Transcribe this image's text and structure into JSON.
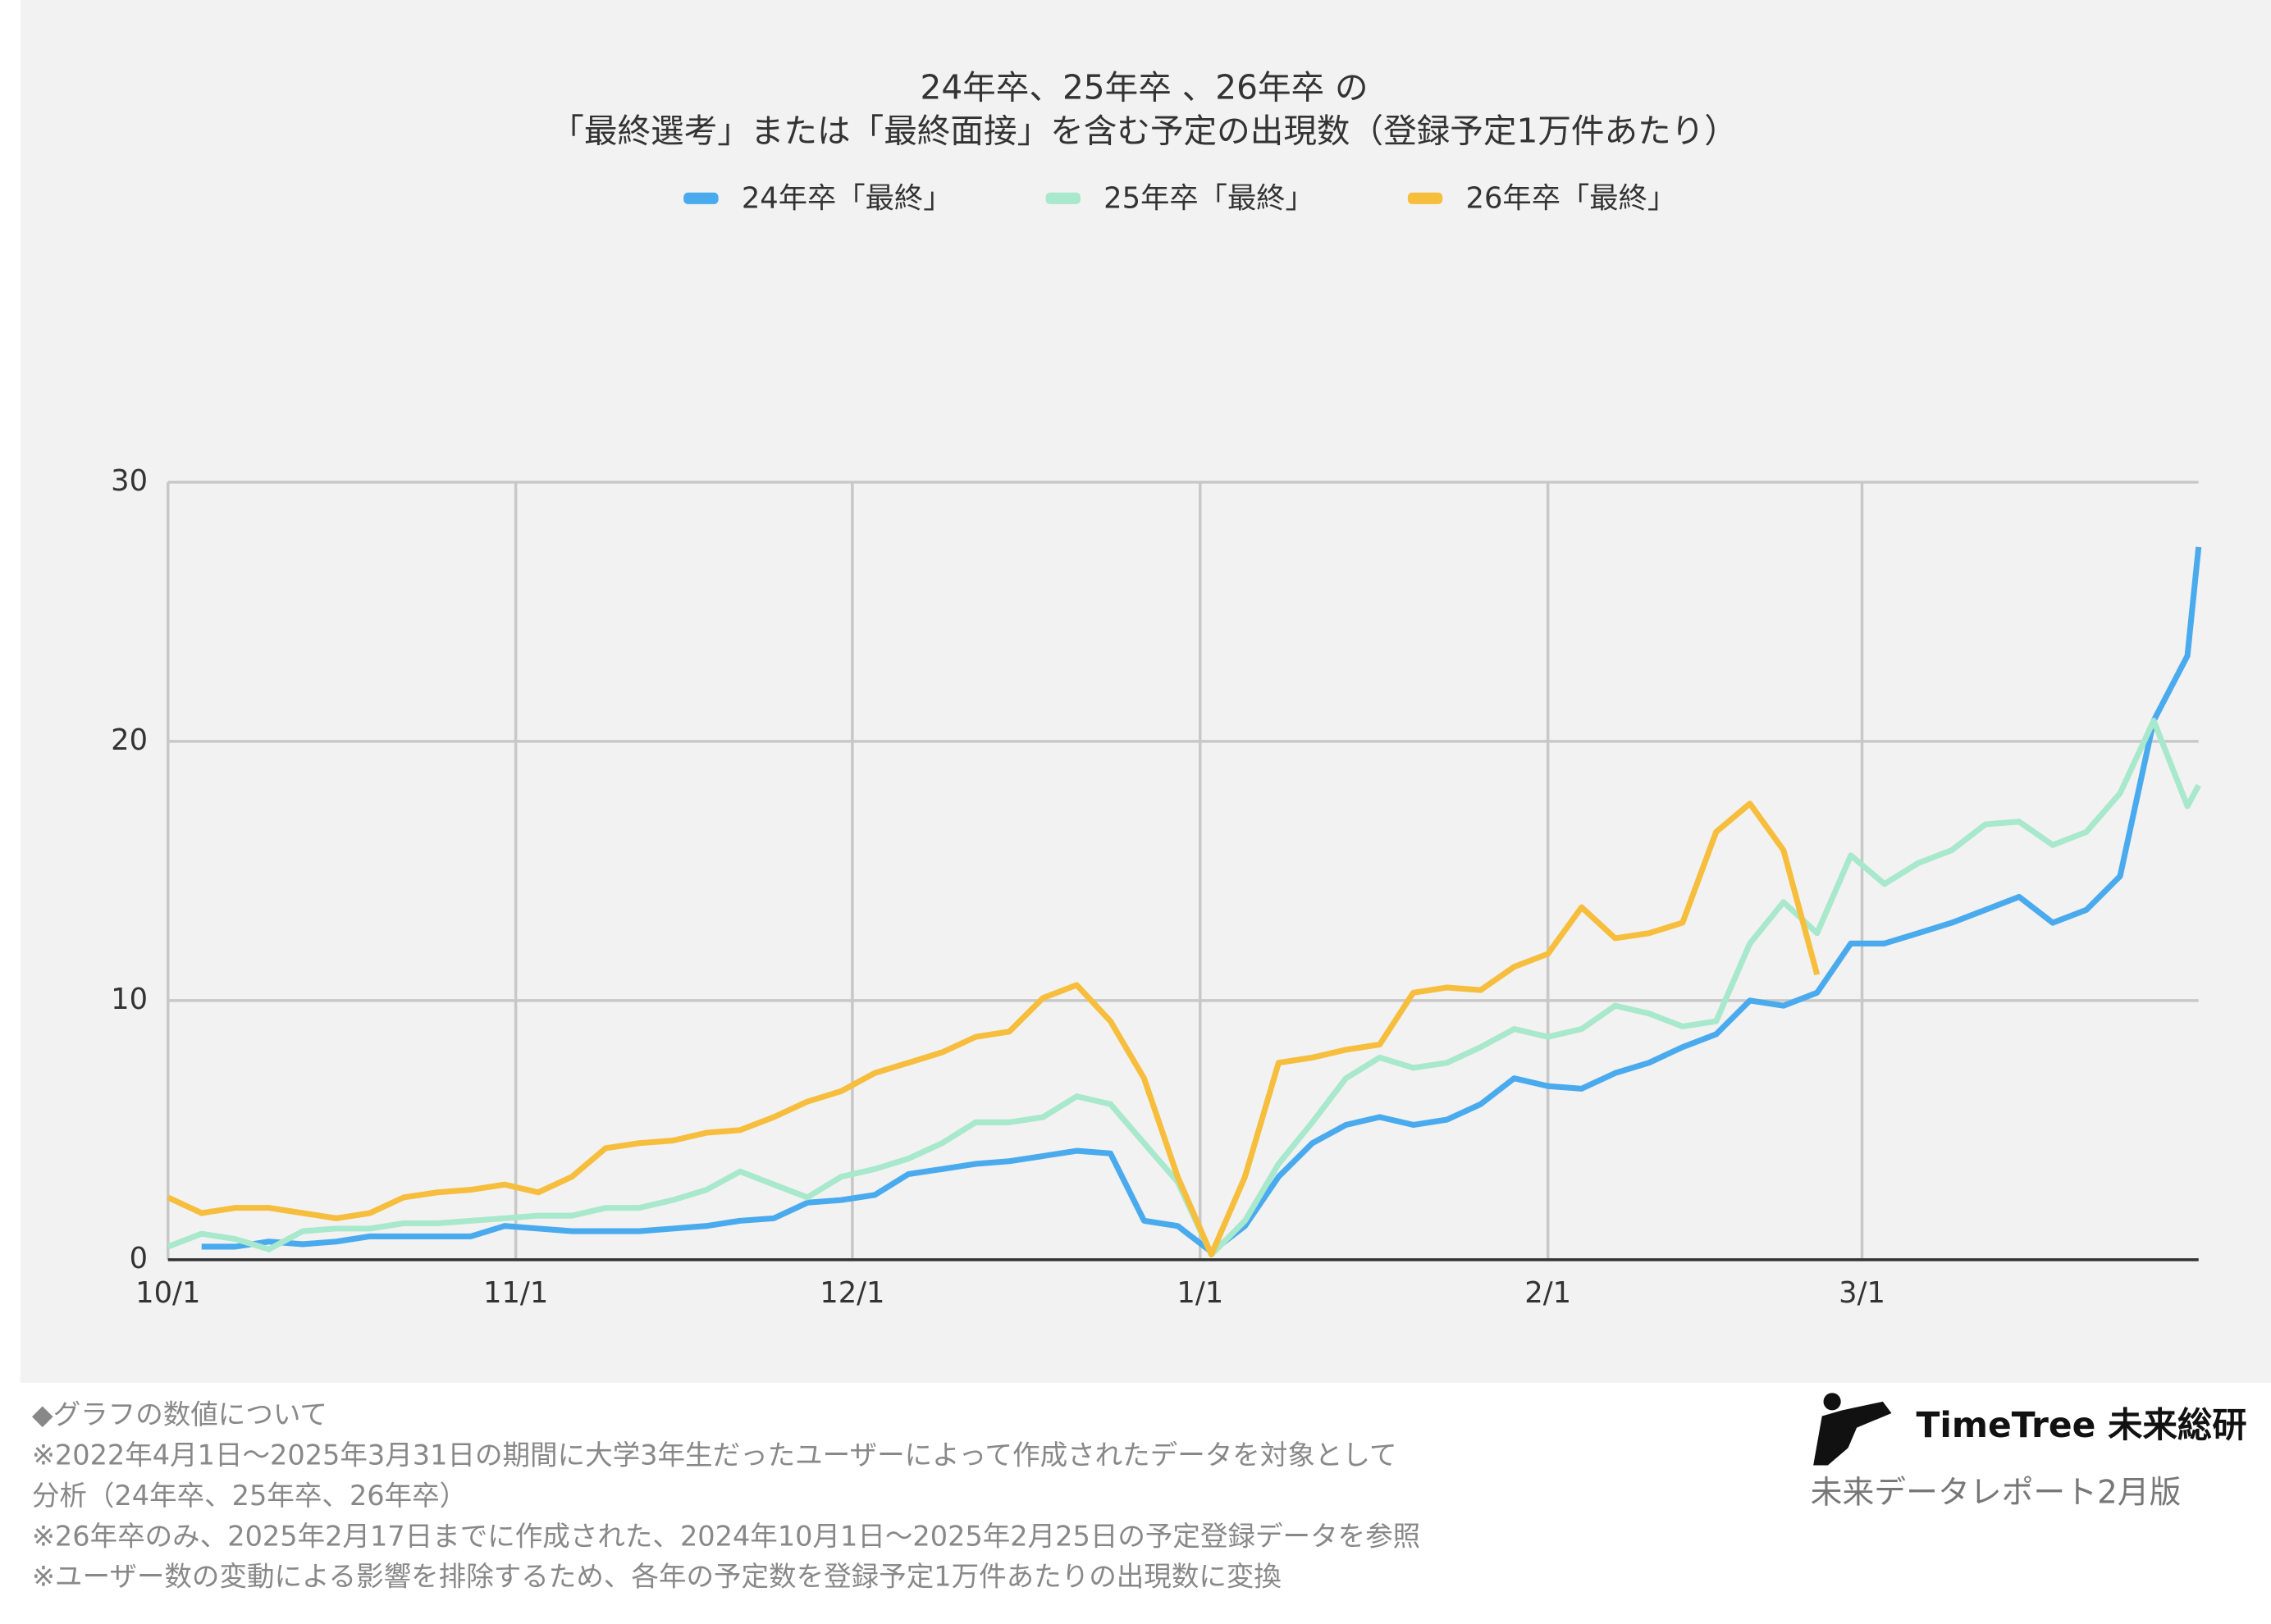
{
  "chart_data": {
    "type": "line",
    "title": [
      "24年卒、25年卒 、26年卒 の",
      "「最終選考」または「最終面接」を含む予定の出現数（登録予定1万件あたり）"
    ],
    "x": [
      0,
      3,
      6,
      9,
      12,
      15,
      18,
      21,
      24,
      27,
      30,
      33,
      36,
      39,
      42,
      45,
      48,
      51,
      54,
      57,
      60,
      63,
      66,
      69,
      72,
      75,
      78,
      81,
      84,
      87,
      90,
      93,
      96,
      99,
      102,
      105,
      108,
      111,
      114,
      117,
      120,
      123,
      126,
      129,
      132,
      135,
      138,
      141,
      144,
      147,
      150,
      153,
      156,
      159,
      162,
      165,
      168,
      171,
      174,
      177,
      180,
      181
    ],
    "xlim": [
      0,
      181
    ],
    "xticks": [
      {
        "value": 0,
        "label": "10/1"
      },
      {
        "value": 31,
        "label": "11/1"
      },
      {
        "value": 61,
        "label": "12/1"
      },
      {
        "value": 92,
        "label": "1/1"
      },
      {
        "value": 123,
        "label": "2/1"
      },
      {
        "value": 151,
        "label": "3/1"
      }
    ],
    "ylim": [
      0,
      30
    ],
    "yticks": [
      0,
      10,
      20,
      30
    ],
    "grid": true,
    "series": [
      {
        "name": "24年卒「最終」",
        "color": "#4aaaee",
        "values": [
          null,
          0.5,
          0.5,
          0.7,
          0.6,
          0.7,
          0.9,
          0.9,
          0.9,
          0.9,
          1.3,
          1.2,
          1.1,
          1.1,
          1.1,
          1.2,
          1.3,
          1.5,
          1.6,
          2.2,
          2.3,
          2.5,
          3.3,
          3.5,
          3.7,
          3.8,
          4.0,
          4.2,
          4.1,
          1.5,
          1.3,
          0.3,
          1.3,
          3.2,
          4.5,
          5.2,
          5.5,
          5.2,
          5.4,
          6.0,
          7.0,
          6.7,
          6.6,
          7.2,
          7.6,
          8.2,
          8.7,
          10.0,
          9.8,
          10.3,
          12.2,
          12.2,
          12.6,
          13.0,
          13.5,
          14.0,
          13.0,
          13.5,
          14.8,
          20.8,
          23.3,
          27.5
        ]
      },
      {
        "name": "25年卒「最終」",
        "color": "#a8e8cc",
        "values": [
          0.5,
          1.0,
          0.8,
          0.4,
          1.1,
          1.2,
          1.2,
          1.4,
          1.4,
          1.5,
          1.6,
          1.7,
          1.7,
          2.0,
          2.0,
          2.3,
          2.7,
          3.4,
          2.9,
          2.4,
          3.2,
          3.5,
          3.9,
          4.5,
          5.3,
          5.3,
          5.5,
          6.3,
          6.0,
          4.5,
          3.0,
          0.2,
          1.5,
          3.7,
          5.3,
          7.0,
          7.8,
          7.4,
          7.6,
          8.2,
          8.9,
          8.6,
          8.9,
          9.8,
          9.5,
          9.0,
          9.2,
          12.2,
          13.8,
          12.6,
          15.6,
          14.5,
          15.3,
          15.8,
          16.8,
          16.9,
          16.0,
          16.5,
          18.0,
          20.8,
          17.5,
          18.3
        ]
      },
      {
        "name": "26年卒「最終」",
        "color": "#f6be3c",
        "values": [
          2.4,
          1.8,
          2.0,
          2.0,
          1.8,
          1.6,
          1.8,
          2.4,
          2.6,
          2.7,
          2.9,
          2.6,
          3.2,
          4.3,
          4.5,
          4.6,
          4.9,
          5.0,
          5.5,
          6.1,
          6.5,
          7.2,
          7.6,
          8.0,
          8.6,
          8.8,
          10.1,
          10.6,
          9.2,
          7.0,
          3.2,
          0.2,
          3.2,
          7.6,
          7.8,
          8.1,
          8.3,
          10.3,
          10.5,
          10.4,
          11.3,
          11.8,
          13.6,
          12.4,
          12.6,
          13.0,
          16.5,
          17.6,
          15.8,
          11.0,
          null,
          null,
          null,
          null,
          null,
          null,
          null,
          null,
          null,
          null,
          null,
          null
        ]
      }
    ]
  },
  "footer": {
    "notes": [
      "◆グラフの数値について",
      "※2022年4月1日～2025年3月31日の期間に大学3年生だったユーザーによって作成されたデータを対象として",
      "分析（24年卒、25年卒、26年卒）",
      "※26年卒のみ、2025年2月17日までに作成された、2024年10月1日～2025年2月25日の予定登録データを参照",
      "※ユーザー数の変動による影響を排除するため、各年の予定数を登録予定1万件あたりの出現数に変換"
    ],
    "brand": "TimeTree 未来総研",
    "edition": "未来データレポート2月版"
  }
}
